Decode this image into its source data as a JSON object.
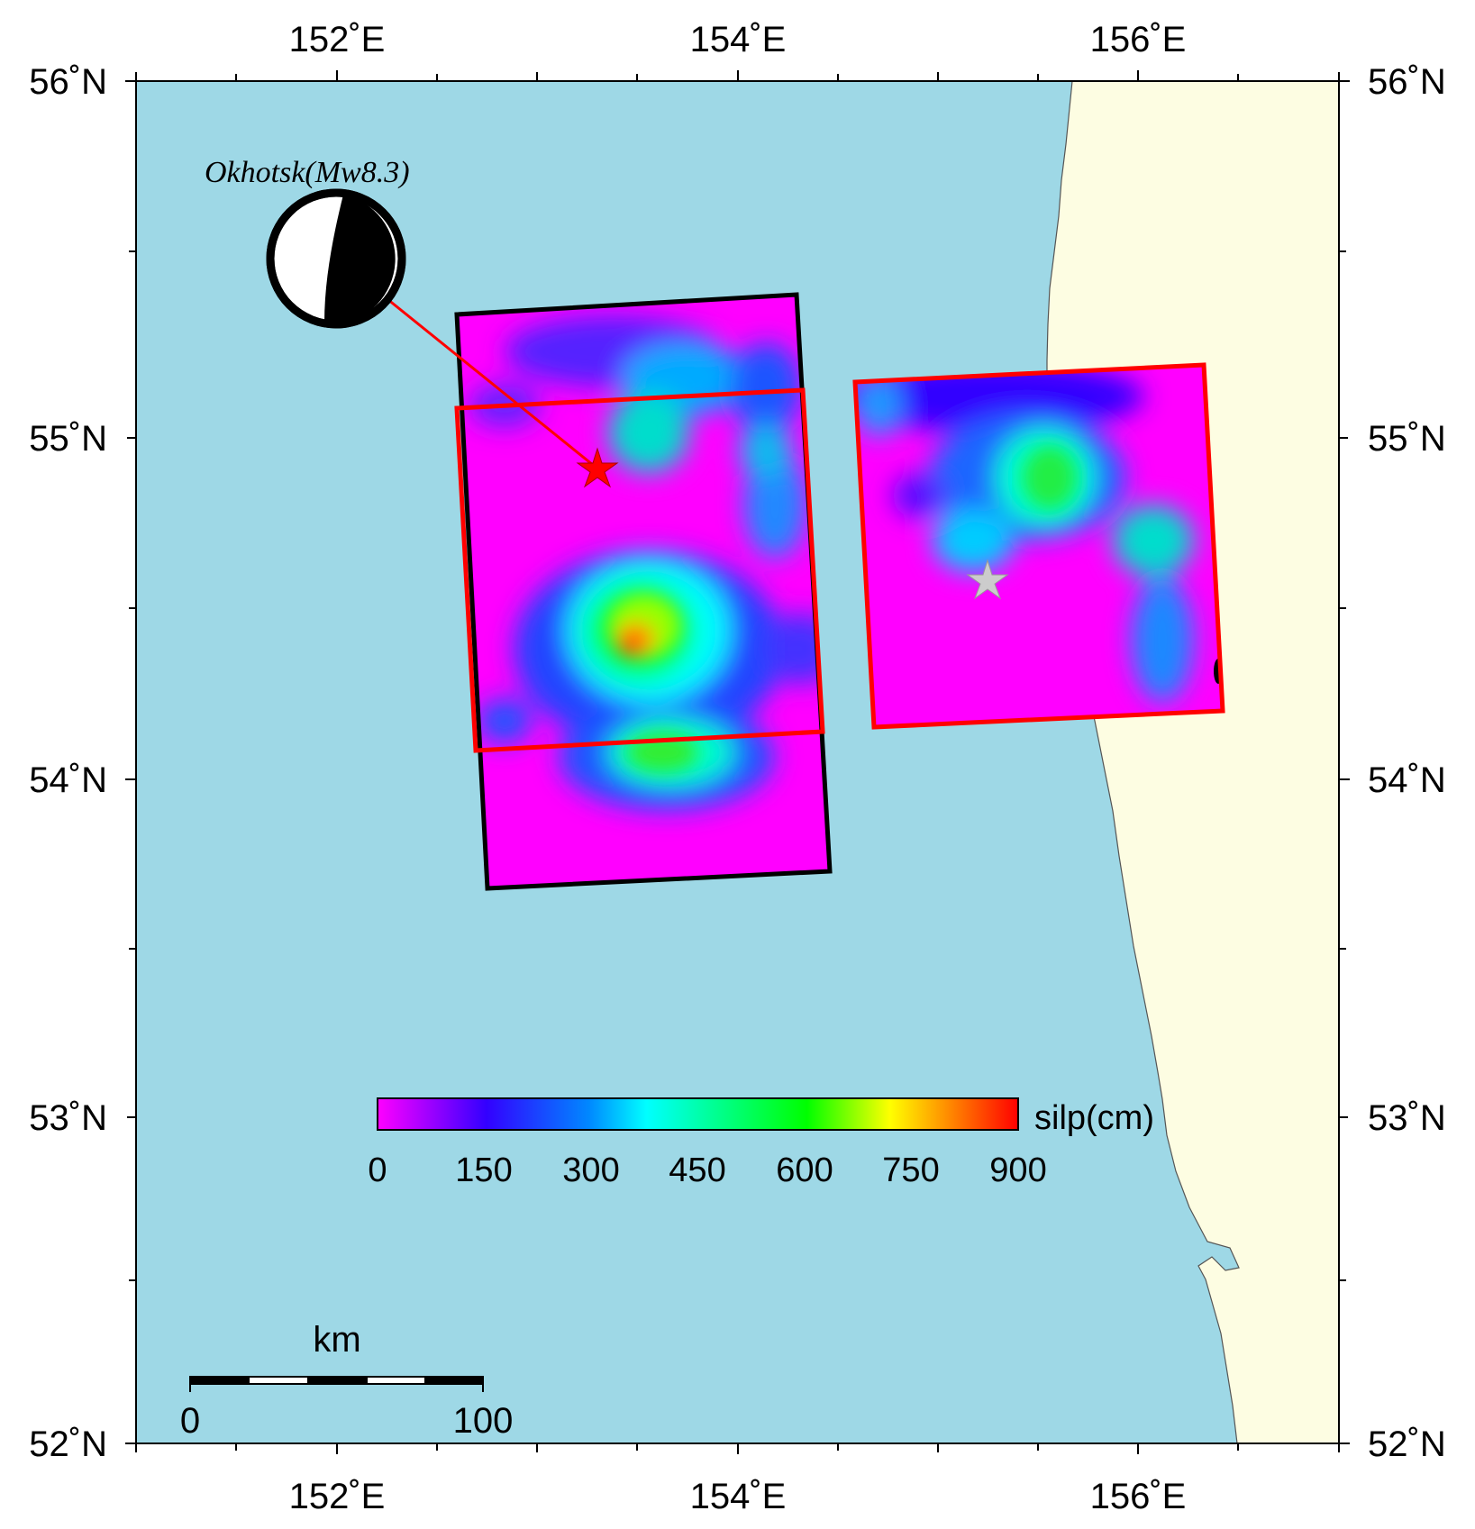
{
  "map": {
    "lon_ticks": [
      "152˚E",
      "154˚E",
      "156˚E"
    ],
    "lat_ticks": [
      "52˚N",
      "53˚N",
      "54˚N",
      "55˚N",
      "56˚N"
    ],
    "extent": {
      "lon": [
        151.0,
        157.0
      ],
      "lat": [
        52.0,
        56.0
      ]
    },
    "colors": {
      "sea": "#9ed8e6",
      "land": "#fdfde2",
      "frame": "#000000",
      "fault_outline_red": "#ff0000"
    }
  },
  "event": {
    "label": "Okhotsk(Mw8.3)",
    "epicenter_lon": 153.3,
    "epicenter_lat": 54.9,
    "second_star_lon": 155.25,
    "second_star_lat": 54.57,
    "star_colors": {
      "epicenter": "#ff0000",
      "secondary": "#cccccc"
    }
  },
  "colorbar": {
    "ticks": [
      "0",
      "150",
      "300",
      "450",
      "600",
      "750",
      "900"
    ],
    "unit_label": "silp(cm)",
    "range": [
      0,
      900
    ],
    "stops": [
      "#ff00ff",
      "#3300ff",
      "#0088ff",
      "#00ffff",
      "#00ff00",
      "#ffff00",
      "#ff0000"
    ]
  },
  "scalebar": {
    "unit": "km",
    "start": "0",
    "end": "100"
  }
}
